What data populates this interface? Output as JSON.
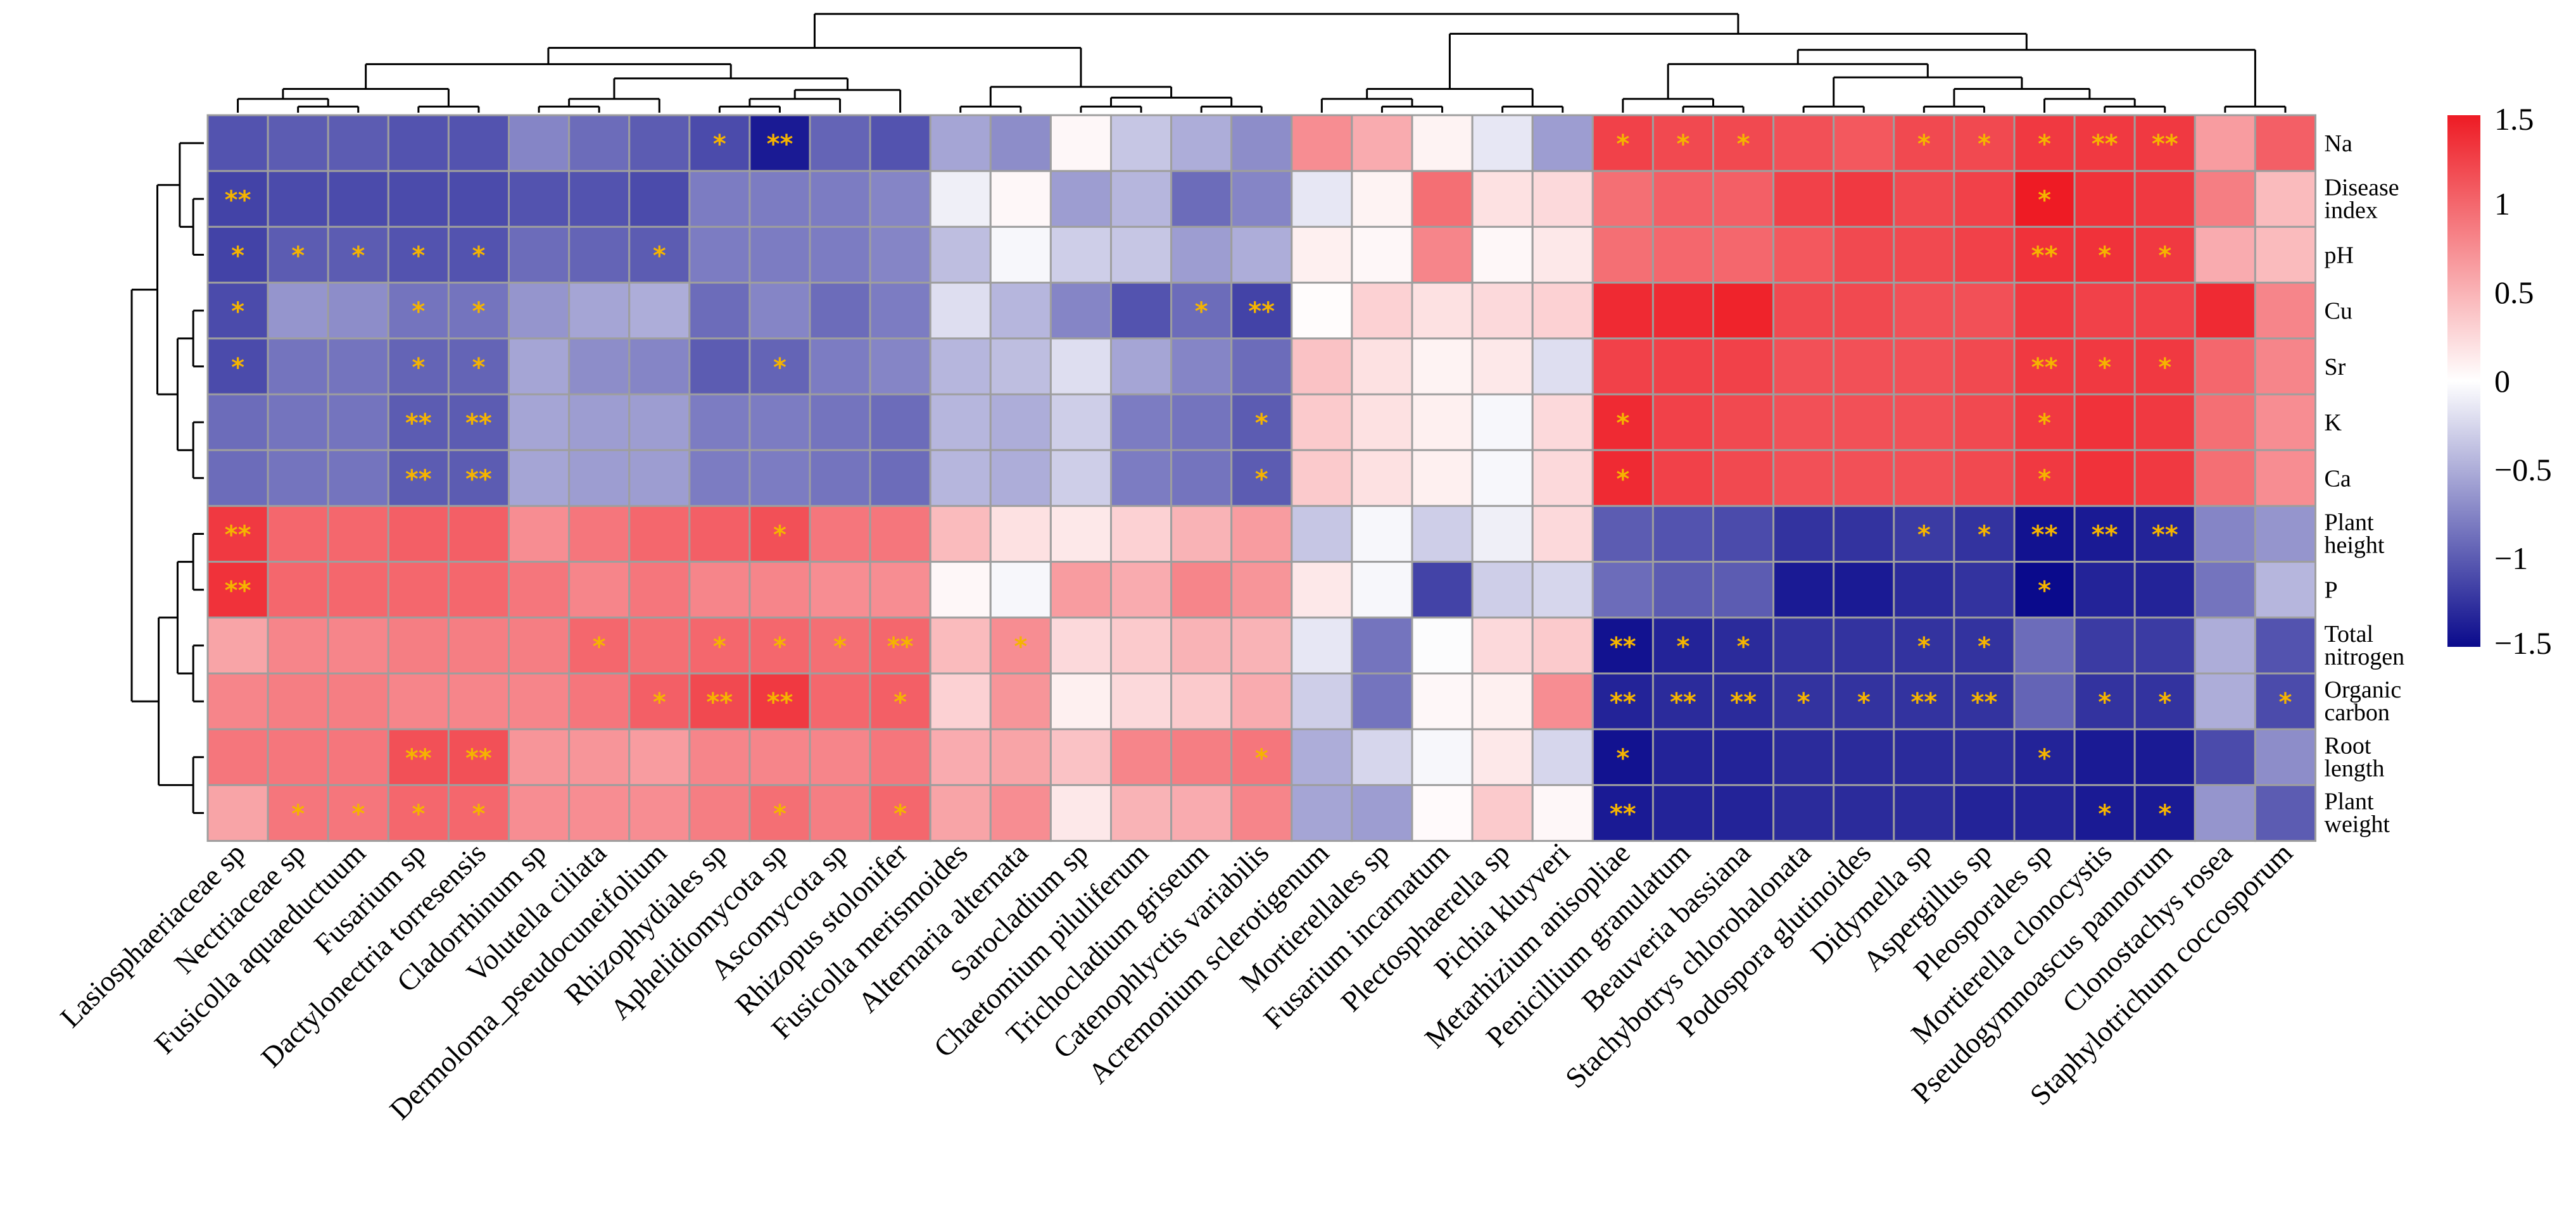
{
  "chart_data": {
    "type": "heatmap",
    "title": "",
    "rows": [
      "Na",
      "Disease index",
      "pH",
      "Cu",
      "Sr",
      "K",
      "Ca",
      "Plant height",
      "P",
      "Total nitrogen",
      "Organic carbon",
      "Root length",
      "Plant weight"
    ],
    "columns": [
      "Lasiosphaeriaceae sp",
      "Nectriaceae sp",
      "Fusicolla aquaeductuum",
      "Fusarium sp",
      "Dactylonectria torresensis",
      "Cladorrhinum sp",
      "Volutella ciliata",
      "Dermoloma_pseudocuneifolium",
      "Rhizophydiales sp",
      "Aphelidiomycota sp",
      "Ascomycota sp",
      "Rhizopus stolonifer",
      "Fusicolla merismoides",
      "Alternaria alternata",
      "Sarocladium sp",
      "Chaetomium piluliferum",
      "Trichocladium griseum",
      "Catenophlyctis variabilis",
      "Acremonium sclerotigenum",
      "Mortierellales sp",
      "Fusarium incarnatum",
      "Plectosphaerella sp",
      "Pichia kluyveri",
      "Metarhizium anisopliae",
      "Penicillium granulatum",
      "Beauveria bassiana",
      "Stachybotrys chlorohalonata",
      "Podospora glutinoides",
      "Didymella sp",
      "Aspergillus sp",
      "Pleosporales sp",
      "Mortierella clonocystis",
      "Pseudogymnoascus pannorum",
      "Clonostachys rosea",
      "Staphylotrichum coccosporum"
    ],
    "values": [
      [
        -1.05,
        -1.0,
        -1.0,
        -1.05,
        -1.05,
        -0.75,
        -0.9,
        -1.0,
        -1.1,
        -1.4,
        -0.95,
        -1.05,
        -0.55,
        -0.7,
        0.05,
        -0.35,
        -0.5,
        -0.7,
        0.75,
        0.55,
        0.08,
        -0.15,
        -0.6,
        1.25,
        1.2,
        1.2,
        1.15,
        1.1,
        1.2,
        1.2,
        1.3,
        1.3,
        1.3,
        0.65,
        1.05
      ],
      [
        -1.15,
        -1.1,
        -1.1,
        -1.1,
        -1.1,
        -1.05,
        -1.05,
        -1.1,
        -0.8,
        -0.8,
        -0.8,
        -0.75,
        -0.1,
        0.05,
        -0.6,
        -0.45,
        -0.9,
        -0.75,
        -0.15,
        0.08,
        0.95,
        0.2,
        0.25,
        0.95,
        1.05,
        1.05,
        1.25,
        1.3,
        1.2,
        1.25,
        1.5,
        1.35,
        1.3,
        0.85,
        0.45
      ],
      [
        -1.15,
        -1.0,
        -1.0,
        -1.05,
        -1.05,
        -0.9,
        -0.95,
        -1.0,
        -0.8,
        -0.8,
        -0.8,
        -0.75,
        -0.4,
        -0.05,
        -0.3,
        -0.35,
        -0.6,
        -0.5,
        0.1,
        0.05,
        0.8,
        0.05,
        0.15,
        0.95,
        1.0,
        1.0,
        1.1,
        1.2,
        1.2,
        1.25,
        1.35,
        1.35,
        1.3,
        0.55,
        0.45
      ],
      [
        -1.1,
        -0.65,
        -0.7,
        -0.85,
        -0.85,
        -0.65,
        -0.55,
        -0.5,
        -0.9,
        -0.75,
        -0.9,
        -0.8,
        -0.2,
        -0.45,
        -0.75,
        -1.05,
        -0.9,
        -1.15,
        0.02,
        0.3,
        0.2,
        0.25,
        0.3,
        1.4,
        1.4,
        1.45,
        1.2,
        1.2,
        1.15,
        1.15,
        1.3,
        1.25,
        1.25,
        1.4,
        0.8
      ],
      [
        -1.1,
        -0.85,
        -0.85,
        -0.95,
        -0.95,
        -0.55,
        -0.7,
        -0.75,
        -1.0,
        -0.95,
        -0.8,
        -0.75,
        -0.45,
        -0.4,
        -0.2,
        -0.55,
        -0.75,
        -0.9,
        0.4,
        0.2,
        0.08,
        0.15,
        -0.2,
        1.25,
        1.25,
        1.25,
        1.15,
        1.15,
        1.15,
        1.2,
        1.3,
        1.3,
        1.3,
        1.0,
        0.8
      ],
      [
        -0.9,
        -0.85,
        -0.85,
        -1.0,
        -1.0,
        -0.55,
        -0.6,
        -0.6,
        -0.8,
        -0.8,
        -0.85,
        -0.9,
        -0.45,
        -0.5,
        -0.3,
        -0.8,
        -0.85,
        -1.0,
        0.35,
        0.2,
        0.1,
        -0.05,
        0.25,
        1.4,
        1.25,
        1.2,
        1.15,
        1.15,
        1.15,
        1.2,
        1.3,
        1.35,
        1.3,
        0.95,
        0.75
      ],
      [
        -0.9,
        -0.85,
        -0.85,
        -1.0,
        -1.0,
        -0.55,
        -0.6,
        -0.6,
        -0.8,
        -0.8,
        -0.85,
        -0.9,
        -0.45,
        -0.5,
        -0.3,
        -0.8,
        -0.85,
        -1.0,
        0.35,
        0.2,
        0.1,
        -0.05,
        0.25,
        1.4,
        1.25,
        1.2,
        1.15,
        1.15,
        1.15,
        1.2,
        1.3,
        1.35,
        1.3,
        0.95,
        0.75
      ],
      [
        1.3,
        1.0,
        1.0,
        1.05,
        1.05,
        0.75,
        0.9,
        1.0,
        1.05,
        1.15,
        0.9,
        0.9,
        0.45,
        0.2,
        0.15,
        0.3,
        0.5,
        0.65,
        -0.35,
        -0.05,
        -0.3,
        -0.1,
        0.25,
        -1.0,
        -1.05,
        -1.1,
        -1.25,
        -1.25,
        -1.2,
        -1.25,
        -1.45,
        -1.4,
        -1.35,
        -0.75,
        -0.65
      ],
      [
        1.35,
        1.0,
        1.0,
        1.0,
        1.0,
        0.9,
        0.8,
        0.9,
        0.8,
        0.8,
        0.75,
        0.75,
        0.05,
        -0.05,
        0.65,
        0.55,
        0.8,
        0.7,
        0.15,
        -0.05,
        -1.15,
        -0.3,
        -0.25,
        -0.9,
        -1.0,
        -1.0,
        -1.4,
        -1.4,
        -1.3,
        -1.25,
        -1.6,
        -1.35,
        -1.35,
        -0.85,
        -0.45
      ],
      [
        0.6,
        0.8,
        0.8,
        0.85,
        0.85,
        0.85,
        1.0,
        0.95,
        1.0,
        1.0,
        0.95,
        1.0,
        0.45,
        0.75,
        0.25,
        0.35,
        0.5,
        0.5,
        -0.15,
        -0.85,
        -0.02,
        0.25,
        0.35,
        -1.45,
        -1.35,
        -1.3,
        -1.25,
        -1.25,
        -1.25,
        -1.25,
        -0.9,
        -1.2,
        -1.2,
        -0.5,
        -1.05
      ],
      [
        0.8,
        0.85,
        0.85,
        0.8,
        0.8,
        0.8,
        0.9,
        1.05,
        1.2,
        1.3,
        1.0,
        1.05,
        0.3,
        0.7,
        0.1,
        0.25,
        0.35,
        0.55,
        -0.3,
        -0.85,
        0.05,
        0.1,
        0.75,
        -1.35,
        -1.3,
        -1.3,
        -1.25,
        -1.25,
        -1.25,
        -1.25,
        -0.95,
        -1.25,
        -1.25,
        -0.5,
        -1.1
      ],
      [
        0.9,
        0.9,
        0.9,
        1.15,
        1.15,
        0.7,
        0.7,
        0.65,
        0.8,
        0.8,
        0.8,
        0.9,
        0.55,
        0.6,
        0.4,
        0.8,
        0.85,
        0.9,
        -0.5,
        -0.25,
        -0.05,
        0.15,
        -0.25,
        -1.45,
        -1.35,
        -1.35,
        -1.3,
        -1.3,
        -1.3,
        -1.3,
        -1.35,
        -1.4,
        -1.4,
        -1.1,
        -0.7
      ],
      [
        0.6,
        0.9,
        0.9,
        1.0,
        1.0,
        0.75,
        0.75,
        0.75,
        0.85,
        0.95,
        0.85,
        1.0,
        0.6,
        0.75,
        0.15,
        0.5,
        0.55,
        0.8,
        -0.55,
        -0.6,
        0.03,
        0.35,
        0.05,
        -1.4,
        -1.35,
        -1.35,
        -1.3,
        -1.3,
        -1.3,
        -1.35,
        -1.35,
        -1.4,
        -1.4,
        -0.65,
        -1.0
      ]
    ],
    "significance": [
      [
        "",
        "",
        "",
        "",
        "",
        "",
        "",
        "",
        "*",
        "**",
        "",
        "",
        "",
        "",
        "",
        "",
        "",
        "",
        "",
        "",
        "",
        "",
        "",
        "*",
        "*",
        "*",
        "",
        "",
        "*",
        "*",
        "*",
        "**",
        "**",
        "",
        ""
      ],
      [
        "**",
        "",
        "",
        "",
        "",
        "",
        "",
        "",
        "",
        "",
        "",
        "",
        "",
        "",
        "",
        "",
        "",
        "",
        "",
        "",
        "",
        "",
        "",
        "",
        "",
        "",
        "",
        "",
        "",
        "",
        "*",
        "",
        "",
        "",
        ""
      ],
      [
        "*",
        "*",
        "*",
        "*",
        "*",
        "",
        "",
        "*",
        "",
        "",
        "",
        "",
        "",
        "",
        "",
        "",
        "",
        "",
        "",
        "",
        "",
        "",
        "",
        "",
        "",
        "",
        "",
        "",
        "",
        "",
        "**",
        "*",
        "*",
        "",
        ""
      ],
      [
        "*",
        "",
        "",
        "*",
        "*",
        "",
        "",
        "",
        "",
        "",
        "",
        "",
        "",
        "",
        "",
        "",
        "*",
        "**",
        "",
        "",
        "",
        "",
        "",
        "",
        "",
        "",
        "",
        "",
        "",
        "",
        "",
        "",
        "",
        "",
        ""
      ],
      [
        "*",
        "",
        "",
        "*",
        "*",
        "",
        "",
        "",
        "",
        "*",
        "",
        "",
        "",
        "",
        "",
        "",
        "",
        "",
        "",
        "",
        "",
        "",
        "",
        "",
        "",
        "",
        "",
        "",
        "",
        "",
        "**",
        "*",
        "*",
        "",
        ""
      ],
      [
        "",
        "",
        "",
        "**",
        "**",
        "",
        "",
        "",
        "",
        "",
        "",
        "",
        "",
        "",
        "",
        "",
        "",
        "*",
        "",
        "",
        "",
        "",
        "",
        "*",
        "",
        "",
        "",
        "",
        "",
        "",
        "*",
        "",
        "",
        "",
        ""
      ],
      [
        "",
        "",
        "",
        "**",
        "**",
        "",
        "",
        "",
        "",
        "",
        "",
        "",
        "",
        "",
        "",
        "",
        "",
        "*",
        "",
        "",
        "",
        "",
        "",
        "*",
        "",
        "",
        "",
        "",
        "",
        "",
        "*",
        "",
        "",
        "",
        ""
      ],
      [
        "**",
        "",
        "",
        "",
        "",
        "",
        "",
        "",
        "",
        "*",
        "",
        "",
        "",
        "",
        "",
        "",
        "",
        "",
        "",
        "",
        "",
        "",
        "",
        "",
        "",
        "",
        "",
        "",
        "*",
        "*",
        "**",
        "**",
        "**",
        "",
        ""
      ],
      [
        "**",
        "",
        "",
        "",
        "",
        "",
        "",
        "",
        "",
        "",
        "",
        "",
        "",
        "",
        "",
        "",
        "",
        "",
        "",
        "",
        "",
        "",
        "",
        "",
        "",
        "",
        "",
        "",
        "",
        "",
        "*",
        "",
        "",
        "",
        ""
      ],
      [
        "",
        "",
        "",
        "",
        "",
        "",
        "*",
        "",
        "*",
        "*",
        "*",
        "**",
        "",
        "*",
        "",
        "",
        "",
        "",
        "",
        "",
        "",
        "",
        "",
        "**",
        "*",
        "*",
        "",
        "",
        "*",
        "*",
        "",
        "",
        "",
        "",
        ""
      ],
      [
        "",
        "",
        "",
        "",
        "",
        "",
        "",
        "*",
        "**",
        "**",
        "",
        "*",
        "",
        "",
        "",
        "",
        "",
        "",
        "",
        "",
        "",
        "",
        "",
        "**",
        "**",
        "**",
        "*",
        "*",
        "**",
        "**",
        "",
        "*",
        "*",
        "",
        "*"
      ],
      [
        "",
        "",
        "",
        "**",
        "**",
        "",
        "",
        "",
        "",
        "",
        "",
        "",
        "",
        "",
        "",
        "",
        "",
        "*",
        "",
        "",
        "",
        "",
        "",
        "*",
        "",
        "",
        "",
        "",
        "",
        "",
        "*",
        "",
        "",
        "",
        ""
      ],
      [
        "",
        "*",
        "*",
        "*",
        "*",
        "",
        "",
        "",
        "",
        "*",
        "",
        "*",
        "",
        "",
        "",
        "",
        "",
        "",
        "",
        "",
        "",
        "",
        "",
        "**",
        "",
        "",
        "",
        "",
        "",
        "",
        "",
        "*",
        "*",
        "",
        ""
      ]
    ],
    "color_scale": {
      "min": -1.5,
      "max": 1.5,
      "low": "#0a0a8c",
      "mid": "#ffffff",
      "high": "#ee1b24",
      "ticks": [
        "1.5",
        "1",
        "0.5",
        "0",
        "−0.5",
        "−1",
        "−1.5"
      ]
    },
    "star_color": "#f5b400",
    "grid_color": "#9e9e9e"
  }
}
